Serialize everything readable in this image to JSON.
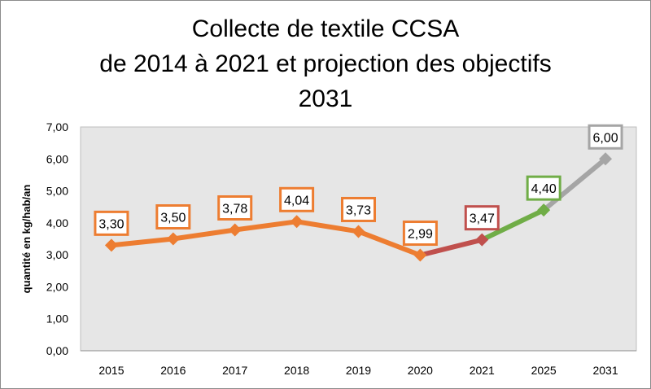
{
  "chart_data": {
    "type": "line",
    "title": [
      "Collecte de textile CCSA",
      "de 2014 à 2021 et projection des objectifs",
      "2031"
    ],
    "ylabel": "quantité en kg/hab/an",
    "xlabel": "",
    "ylim": [
      0,
      7
    ],
    "ytick_step": 1,
    "ytick_labels": [
      "0,00",
      "1,00",
      "2,00",
      "3,00",
      "4,00",
      "5,00",
      "6,00",
      "7,00"
    ],
    "categories": [
      "2015",
      "2016",
      "2017",
      "2018",
      "2019",
      "2020",
      "2021",
      "2025",
      "2031"
    ],
    "values": [
      3.3,
      3.5,
      3.78,
      4.04,
      3.73,
      2.99,
      3.47,
      4.4,
      6.0
    ],
    "data_labels": [
      "3,30",
      "3,50",
      "3,78",
      "4,04",
      "3,73",
      "2,99",
      "3,47",
      "4,40",
      "6,00"
    ],
    "point_colors": [
      "#ed7d31",
      "#ed7d31",
      "#ed7d31",
      "#ed7d31",
      "#ed7d31",
      "#ed7d31",
      "#c0504d",
      "#70ad47",
      "#a5a5a5"
    ],
    "segment_colors": [
      "#ed7d31",
      "#ed7d31",
      "#ed7d31",
      "#ed7d31",
      "#ed7d31",
      "#c0504d",
      "#70ad47",
      "#a5a5a5"
    ],
    "plot_background": "#e6e6e6",
    "grid": false,
    "legend": "none"
  }
}
